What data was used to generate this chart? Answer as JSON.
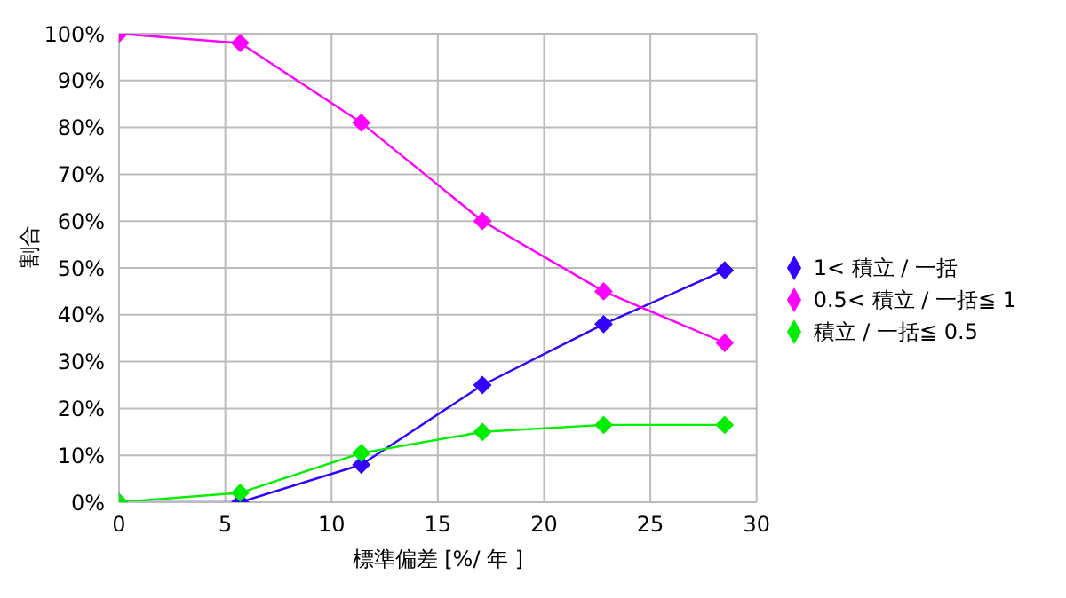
{
  "chart_data": {
    "type": "line",
    "xlabel": "標準偏差 [%/ 年 ]",
    "ylabel": "割合",
    "x": [
      0,
      5.7,
      11.4,
      17.1,
      22.8,
      28.5
    ],
    "series": [
      {
        "name": "1< 積立 / 一括",
        "color": "#3300ff",
        "values": [
          0,
          0,
          8,
          25,
          38,
          49.5
        ]
      },
      {
        "name": "0.5< 積立 / 一括≦ 1",
        "color": "#ff00ff",
        "values": [
          100,
          98,
          81,
          60,
          45,
          34
        ]
      },
      {
        "name": "積立 / 一括≦ 0.5",
        "color": "#00ee00",
        "values": [
          0,
          2,
          10.5,
          15,
          16.5,
          16.5
        ]
      }
    ],
    "xlim": [
      0,
      30
    ],
    "xticks": [
      0,
      5,
      10,
      15,
      20,
      25,
      30
    ],
    "ylim": [
      0,
      100
    ],
    "yticks": [
      {
        "value": 0,
        "label": "0%"
      },
      {
        "value": 10,
        "label": "10%"
      },
      {
        "value": 20,
        "label": "20%"
      },
      {
        "value": 30,
        "label": "30%"
      },
      {
        "value": 40,
        "label": "40%"
      },
      {
        "value": 50,
        "label": "50%"
      },
      {
        "value": 60,
        "label": "60%"
      },
      {
        "value": 70,
        "label": "70%"
      },
      {
        "value": 80,
        "label": "80%"
      },
      {
        "value": 90,
        "label": "90%"
      },
      {
        "value": 100,
        "label": "100%"
      }
    ],
    "grid": true,
    "legend": "right",
    "marker": "diamond",
    "line_style": "solid"
  }
}
